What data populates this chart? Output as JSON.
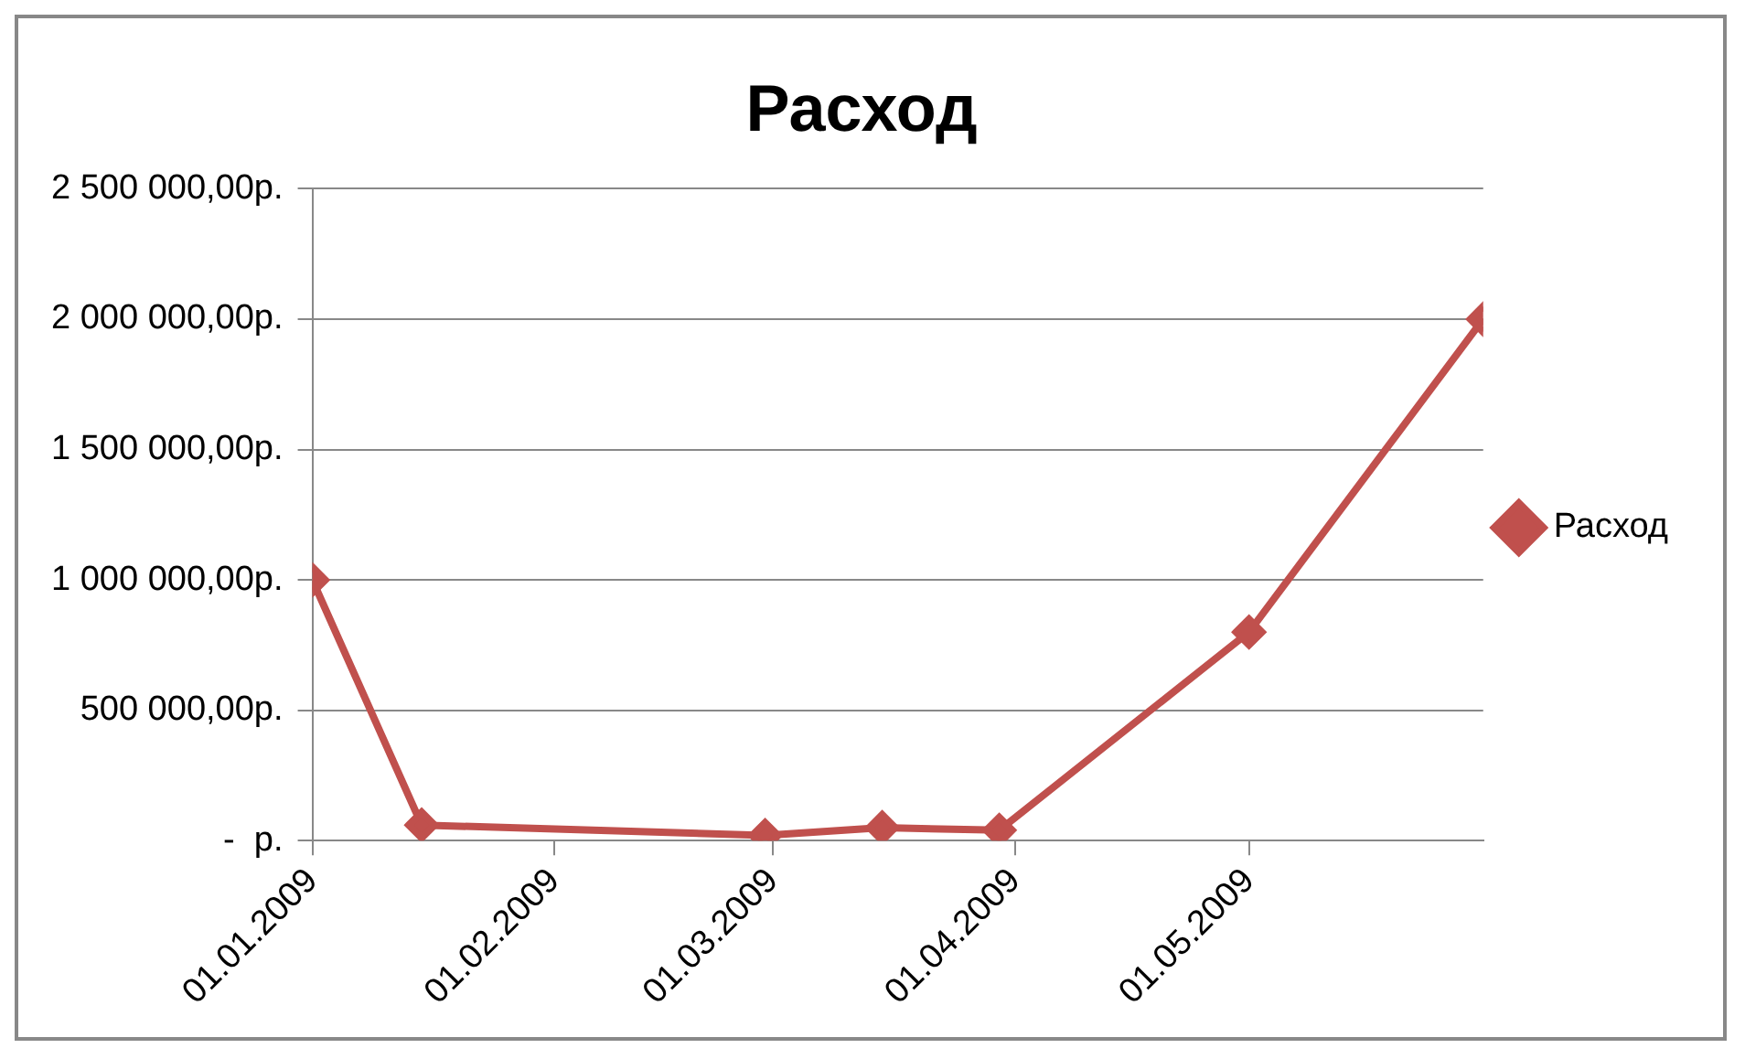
{
  "chart_data": {
    "type": "line",
    "title": "Расход",
    "x": [
      "2009-01-01",
      "2009-01-15",
      "2009-02-28",
      "2009-03-15",
      "2009-03-30",
      "2009-05-01",
      "2009-05-31"
    ],
    "series": [
      {
        "name": "Расход",
        "color": "#c0504d",
        "values": [
          1000000,
          60000,
          20000,
          50000,
          40000,
          800000,
          2000000
        ]
      }
    ],
    "xlim": [
      "2009-01-01",
      "2009-05-31"
    ],
    "xticks": [
      {
        "value": "2009-01-01",
        "label": "01.01.2009"
      },
      {
        "value": "2009-02-01",
        "label": "01.02.2009"
      },
      {
        "value": "2009-03-01",
        "label": "01.03.2009"
      },
      {
        "value": "2009-04-01",
        "label": "01.04.2009"
      },
      {
        "value": "2009-05-01",
        "label": "01.05.2009"
      }
    ],
    "ylim": [
      0,
      2500000
    ],
    "yticks": [
      {
        "value": 0,
        "label": "-  р."
      },
      {
        "value": 500000,
        "label": "500 000,00р."
      },
      {
        "value": 1000000,
        "label": "1 000 000,00р."
      },
      {
        "value": 1500000,
        "label": "1 500 000,00р."
      },
      {
        "value": 2000000,
        "label": "2 000 000,00р."
      },
      {
        "value": 2500000,
        "label": "2 500 000,00р."
      }
    ],
    "grid": "y",
    "legend": "right",
    "marker": "diamond",
    "line_style": "solid"
  }
}
